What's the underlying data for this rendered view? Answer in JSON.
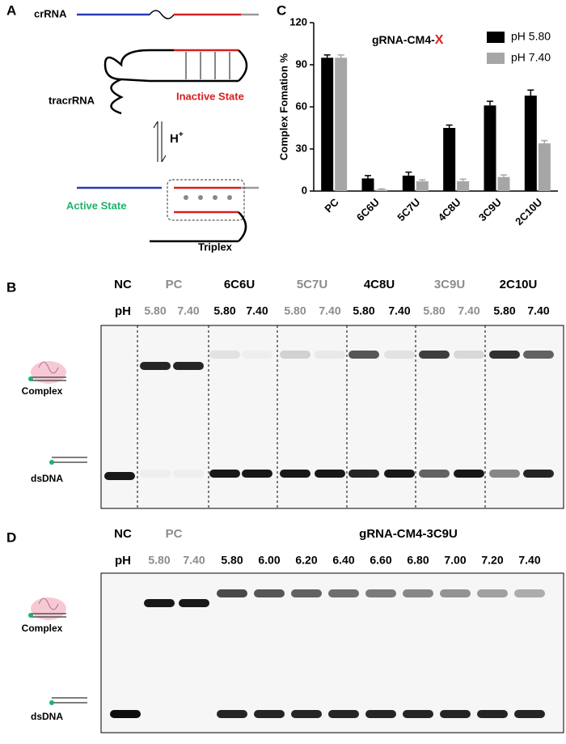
{
  "panels": {
    "a": "A",
    "b": "B",
    "c": "C",
    "d": "D"
  },
  "diagram": {
    "crrna": "crRNA",
    "tracrrna": "tracrRNA",
    "inactive": "Inactive State",
    "proton": "H",
    "proton_charge": "+",
    "active": "Active State",
    "triplex": "Triplex"
  },
  "chart_data": {
    "type": "bar",
    "ylabel": "Complex Fomation %",
    "annotation": "gRNA-CM4-",
    "annotation_highlight": "X",
    "categories": [
      "PC",
      "6C6U",
      "5C7U",
      "4C8U",
      "3C9U",
      "2C10U"
    ],
    "series": [
      {
        "name": "pH 5.80",
        "color": "#000000",
        "values": [
          95,
          9,
          11,
          45,
          61,
          68
        ],
        "errors": [
          2,
          2,
          2.5,
          2,
          3,
          4
        ]
      },
      {
        "name": "pH 7.40",
        "color": "#a6a6a6",
        "values": [
          95,
          1,
          7,
          7,
          10,
          34
        ],
        "errors": [
          2,
          0.5,
          1,
          1.5,
          1.5,
          2
        ]
      }
    ],
    "ylim": [
      0,
      120
    ],
    "yticks": [
      0,
      30,
      60,
      90,
      120
    ],
    "legend": "upper right"
  },
  "gel_b": {
    "lanes": [
      "NC",
      "PC",
      "6C6U",
      "5C7U",
      "4C8U",
      "3C9U",
      "2C10U"
    ],
    "ph_label": "pH",
    "ph": [
      "5.80",
      "7.40"
    ],
    "complex": "Complex",
    "dsdna": "dsDNA"
  },
  "gel_d": {
    "nc": "NC",
    "pc": "PC",
    "sample": "gRNA-CM4-3C9U",
    "ph_label": "pH",
    "ph_pc": [
      "5.80",
      "7.40"
    ],
    "ph": [
      "5.80",
      "6.00",
      "6.20",
      "6.40",
      "6.60",
      "6.80",
      "7.00",
      "7.20",
      "7.40"
    ],
    "complex": "Complex",
    "dsdna": "dsDNA"
  }
}
